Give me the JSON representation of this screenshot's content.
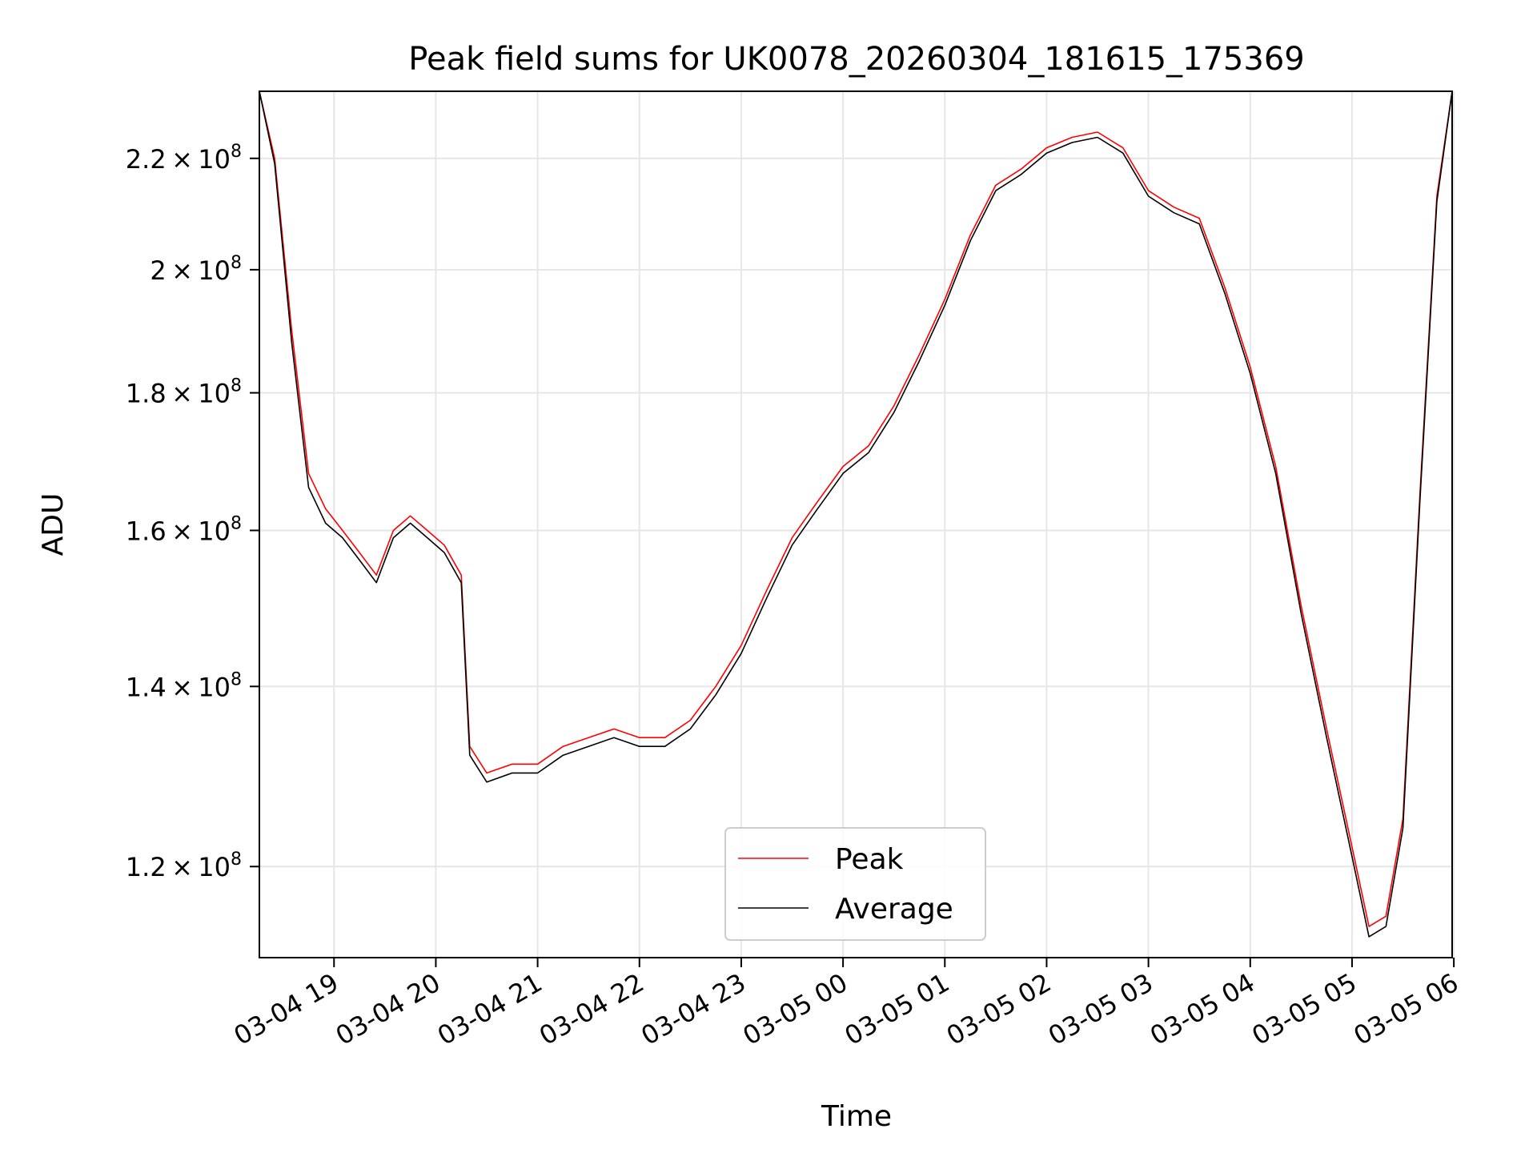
{
  "chart_data": {
    "type": "line",
    "title": "Peak field sums for UK0078_20260304_181615_175369",
    "xlabel": "Time",
    "ylabel": "ADU",
    "y_scale": "log",
    "grid": true,
    "legend_placement": "lower center",
    "xlim": [
      "2026-03-04 18:16",
      "2026-03-05 05:59"
    ],
    "ylim": [
      111000000,
      233000000
    ],
    "x_ticks": [
      {
        "value": "2026-03-04 19:00",
        "label": "03-04 19"
      },
      {
        "value": "2026-03-04 20:00",
        "label": "03-04 20"
      },
      {
        "value": "2026-03-04 21:00",
        "label": "03-04 21"
      },
      {
        "value": "2026-03-04 22:00",
        "label": "03-04 22"
      },
      {
        "value": "2026-03-04 23:00",
        "label": "03-04 23"
      },
      {
        "value": "2026-03-05 00:00",
        "label": "03-05 00"
      },
      {
        "value": "2026-03-05 01:00",
        "label": "03-05 01"
      },
      {
        "value": "2026-03-05 02:00",
        "label": "03-05 02"
      },
      {
        "value": "2026-03-05 03:00",
        "label": "03-05 03"
      },
      {
        "value": "2026-03-05 04:00",
        "label": "03-05 04"
      },
      {
        "value": "2026-03-05 05:00",
        "label": "03-05 05"
      },
      {
        "value": "2026-03-05 06:00",
        "label": "03-05 06"
      }
    ],
    "y_ticks": [
      {
        "value": 120000000,
        "mantissa": "1.2",
        "base": "10",
        "exp": "8"
      },
      {
        "value": 140000000,
        "mantissa": "1.4",
        "base": "10",
        "exp": "8"
      },
      {
        "value": 160000000,
        "mantissa": "1.6",
        "base": "10",
        "exp": "8"
      },
      {
        "value": 180000000,
        "mantissa": "1.8",
        "base": "10",
        "exp": "8"
      },
      {
        "value": 200000000,
        "mantissa": "2",
        "base": "10",
        "exp": "8"
      },
      {
        "value": 220000000,
        "mantissa": "2.2",
        "base": "10",
        "exp": "8"
      }
    ],
    "series": [
      {
        "name": "Peak",
        "color": "#ff0000",
        "x": [
          "2026-03-04 18:16",
          "2026-03-04 18:25",
          "2026-03-04 18:35",
          "2026-03-04 18:45",
          "2026-03-04 18:55",
          "2026-03-04 19:05",
          "2026-03-04 19:15",
          "2026-03-04 19:25",
          "2026-03-04 19:35",
          "2026-03-04 19:45",
          "2026-03-04 19:55",
          "2026-03-04 20:05",
          "2026-03-04 20:15",
          "2026-03-04 20:20",
          "2026-03-04 20:30",
          "2026-03-04 20:45",
          "2026-03-04 21:00",
          "2026-03-04 21:15",
          "2026-03-04 21:30",
          "2026-03-04 21:45",
          "2026-03-04 22:00",
          "2026-03-04 22:15",
          "2026-03-04 22:30",
          "2026-03-04 22:45",
          "2026-03-04 23:00",
          "2026-03-04 23:15",
          "2026-03-04 23:30",
          "2026-03-04 23:45",
          "2026-03-05 00:00",
          "2026-03-05 00:15",
          "2026-03-05 00:30",
          "2026-03-05 00:45",
          "2026-03-05 01:00",
          "2026-03-05 01:15",
          "2026-03-05 01:30",
          "2026-03-05 01:45",
          "2026-03-05 02:00",
          "2026-03-05 02:15",
          "2026-03-05 02:30",
          "2026-03-05 02:45",
          "2026-03-05 03:00",
          "2026-03-05 03:15",
          "2026-03-05 03:30",
          "2026-03-05 03:45",
          "2026-03-05 04:00",
          "2026-03-05 04:15",
          "2026-03-05 04:30",
          "2026-03-05 04:45",
          "2026-03-05 05:00",
          "2026-03-05 05:10",
          "2026-03-05 05:20",
          "2026-03-05 05:30",
          "2026-03-05 05:40",
          "2026-03-05 05:50",
          "2026-03-05 05:59"
        ],
        "values": [
          233000000,
          220000000,
          190000000,
          168000000,
          163000000,
          160000000,
          157000000,
          154000000,
          160000000,
          162000000,
          160000000,
          158000000,
          154000000,
          133000000,
          130000000,
          131000000,
          131000000,
          133000000,
          134000000,
          135000000,
          134000000,
          134000000,
          136000000,
          140000000,
          145000000,
          152000000,
          159000000,
          164000000,
          169000000,
          172000000,
          178000000,
          186000000,
          195000000,
          206000000,
          215000000,
          218000000,
          222000000,
          224000000,
          225000000,
          222000000,
          214000000,
          211000000,
          209000000,
          197000000,
          184000000,
          169000000,
          150000000,
          135000000,
          122000000,
          114000000,
          115000000,
          125000000,
          165000000,
          213000000,
          233000000
        ]
      },
      {
        "name": "Average",
        "color": "#000000",
        "x": [
          "2026-03-04 18:16",
          "2026-03-04 18:25",
          "2026-03-04 18:35",
          "2026-03-04 18:45",
          "2026-03-04 18:55",
          "2026-03-04 19:05",
          "2026-03-04 19:15",
          "2026-03-04 19:25",
          "2026-03-04 19:35",
          "2026-03-04 19:45",
          "2026-03-04 19:55",
          "2026-03-04 20:05",
          "2026-03-04 20:15",
          "2026-03-04 20:20",
          "2026-03-04 20:30",
          "2026-03-04 20:45",
          "2026-03-04 21:00",
          "2026-03-04 21:15",
          "2026-03-04 21:30",
          "2026-03-04 21:45",
          "2026-03-04 22:00",
          "2026-03-04 22:15",
          "2026-03-04 22:30",
          "2026-03-04 22:45",
          "2026-03-04 23:00",
          "2026-03-04 23:15",
          "2026-03-04 23:30",
          "2026-03-04 23:45",
          "2026-03-05 00:00",
          "2026-03-05 00:15",
          "2026-03-05 00:30",
          "2026-03-05 00:45",
          "2026-03-05 01:00",
          "2026-03-05 01:15",
          "2026-03-05 01:30",
          "2026-03-05 01:45",
          "2026-03-05 02:00",
          "2026-03-05 02:15",
          "2026-03-05 02:30",
          "2026-03-05 02:45",
          "2026-03-05 03:00",
          "2026-03-05 03:15",
          "2026-03-05 03:30",
          "2026-03-05 03:45",
          "2026-03-05 04:00",
          "2026-03-05 04:15",
          "2026-03-05 04:30",
          "2026-03-05 04:45",
          "2026-03-05 05:00",
          "2026-03-05 05:10",
          "2026-03-05 05:20",
          "2026-03-05 05:30",
          "2026-03-05 05:40",
          "2026-03-05 05:50",
          "2026-03-05 05:59"
        ],
        "values": [
          233000000,
          219000000,
          188000000,
          166000000,
          161000000,
          159000000,
          156000000,
          153000000,
          159000000,
          161000000,
          159000000,
          157000000,
          153000000,
          132000000,
          129000000,
          130000000,
          130000000,
          132000000,
          133000000,
          134000000,
          133000000,
          133000000,
          135000000,
          139000000,
          144000000,
          151000000,
          158000000,
          163000000,
          168000000,
          171000000,
          177000000,
          185000000,
          194000000,
          205000000,
          214000000,
          217000000,
          221000000,
          223000000,
          224000000,
          221000000,
          213000000,
          210000000,
          208000000,
          196000000,
          183000000,
          168000000,
          149000000,
          134000000,
          121000000,
          113000000,
          114000000,
          124000000,
          164000000,
          212000000,
          233000000
        ]
      }
    ]
  }
}
